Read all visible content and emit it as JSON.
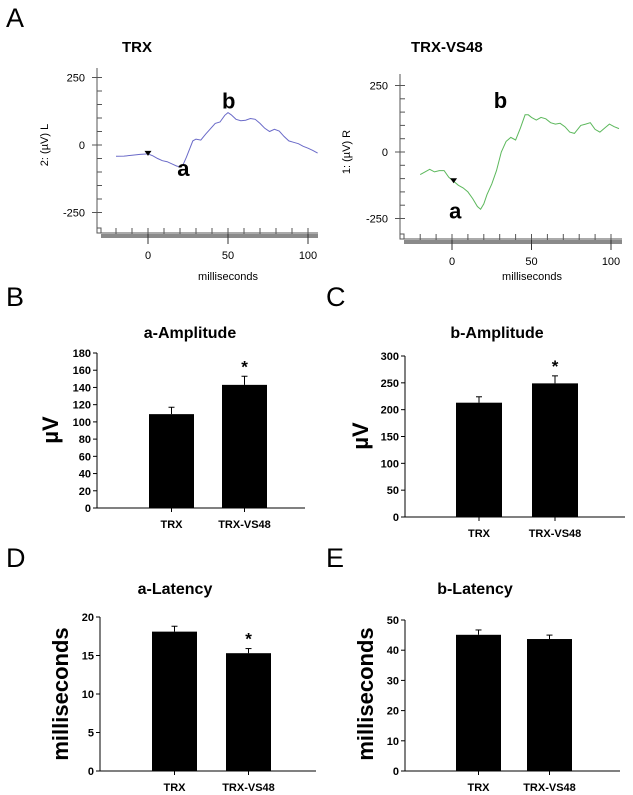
{
  "chart_data": [
    {
      "id": "A-left",
      "panel": "A",
      "type": "line",
      "title": "TRX",
      "xlabel": "milliseconds",
      "ylabel": "2:  (µV)  L",
      "xlim": [
        -30,
        105
      ],
      "ylim": [
        -300,
        280
      ],
      "xticks": [
        0,
        50,
        100
      ],
      "yticks": [
        250,
        0,
        -250
      ],
      "minor_y_step": 50,
      "minor_x_step": 10,
      "line_color": "#6a6ac8",
      "marker_x": 0,
      "annotations": [
        {
          "text": "b",
          "x": 50,
          "y": 165
        },
        {
          "text": "a",
          "x": 22,
          "y": -85
        }
      ],
      "series": [
        {
          "name": "TRX",
          "x": [
            -20,
            -15,
            -10,
            -5,
            0,
            3,
            6,
            9,
            12,
            15,
            18,
            20,
            22,
            24,
            26,
            28,
            30,
            33,
            36,
            39,
            42,
            45,
            48,
            50,
            52,
            55,
            58,
            61,
            64,
            67,
            70,
            73,
            76,
            79,
            82,
            85,
            88,
            91,
            94,
            97,
            100,
            103,
            106
          ],
          "y": [
            -42,
            -41,
            -38,
            -35,
            -33,
            -40,
            -50,
            -58,
            -62,
            -70,
            -78,
            -80,
            -72,
            -45,
            -15,
            15,
            22,
            18,
            40,
            60,
            80,
            85,
            110,
            120,
            112,
            95,
            90,
            92,
            98,
            95,
            80,
            62,
            50,
            58,
            52,
            32,
            15,
            10,
            5,
            -5,
            -12,
            -20,
            -30
          ]
        }
      ]
    },
    {
      "id": "A-right",
      "panel": "A",
      "type": "line",
      "title": "TRX-VS48",
      "xlabel": "milliseconds",
      "ylabel": "1:  (µV)  R",
      "xlim": [
        -30,
        105
      ],
      "ylim": [
        -300,
        280
      ],
      "xticks": [
        0,
        50,
        100
      ],
      "yticks": [
        250,
        0,
        -250
      ],
      "minor_y_step": 50,
      "minor_x_step": 10,
      "line_color": "#5cb85c",
      "marker_x": 1,
      "annotations": [
        {
          "text": "b",
          "x": 30,
          "y": 195
        },
        {
          "text": "a",
          "x": 2,
          "y": -220
        }
      ],
      "series": [
        {
          "name": "TRX-VS48",
          "x": [
            -20,
            -17,
            -14,
            -11,
            -8,
            -5,
            -2,
            1,
            4,
            7,
            10,
            13,
            16,
            18,
            20,
            22,
            25,
            28,
            31,
            34,
            37,
            40,
            43,
            46,
            48,
            50,
            53,
            56,
            59,
            62,
            65,
            68,
            71,
            74,
            77,
            79,
            81,
            84,
            87,
            90,
            93,
            96,
            99,
            102,
            105
          ],
          "y": [
            -85,
            -75,
            -65,
            -75,
            -70,
            -70,
            -95,
            -110,
            -125,
            -135,
            -150,
            -175,
            -205,
            -215,
            -195,
            -160,
            -120,
            -70,
            0,
            40,
            55,
            45,
            90,
            140,
            140,
            130,
            120,
            130,
            125,
            110,
            105,
            108,
            95,
            75,
            70,
            85,
            100,
            105,
            110,
            85,
            75,
            90,
            105,
            95,
            88
          ]
        }
      ]
    },
    {
      "id": "B",
      "panel": "B",
      "type": "bar",
      "title": "a-Amplitude",
      "xlabel": "",
      "ylabel": "µV",
      "categories": [
        "TRX",
        "TRX-VS48"
      ],
      "values": [
        109,
        143
      ],
      "errors": [
        8,
        10
      ],
      "significance": [
        "",
        "*"
      ],
      "ylim": [
        0,
        180
      ],
      "yticks": [
        0,
        20,
        40,
        60,
        80,
        100,
        120,
        140,
        160,
        180
      ],
      "bar_color": "#000000"
    },
    {
      "id": "C",
      "panel": "C",
      "type": "bar",
      "title": "b-Amplitude",
      "xlabel": "",
      "ylabel": "µV",
      "categories": [
        "TRX",
        "TRX-VS48"
      ],
      "values": [
        213,
        249
      ],
      "errors": [
        11,
        14
      ],
      "significance": [
        "",
        "*"
      ],
      "ylim": [
        0,
        300
      ],
      "yticks": [
        0,
        50,
        100,
        150,
        200,
        250,
        300
      ],
      "bar_color": "#000000"
    },
    {
      "id": "D",
      "panel": "D",
      "type": "bar",
      "title": "a-Latency",
      "xlabel": "",
      "ylabel": "milliseconds",
      "categories": [
        "TRX",
        "TRX-VS48"
      ],
      "values": [
        18.1,
        15.3
      ],
      "errors": [
        0.7,
        0.6
      ],
      "significance": [
        "",
        "*"
      ],
      "ylim": [
        0,
        20
      ],
      "yticks": [
        0,
        5,
        10,
        15,
        20
      ],
      "bar_color": "#000000"
    },
    {
      "id": "E",
      "panel": "E",
      "type": "bar",
      "title": "b-Latency",
      "xlabel": "",
      "ylabel": "milliseconds",
      "categories": [
        "TRX",
        "TRX-VS48"
      ],
      "values": [
        45.1,
        43.7
      ],
      "errors": [
        1.6,
        1.3
      ],
      "significance": [
        "",
        ""
      ],
      "ylim": [
        0,
        50
      ],
      "yticks": [
        0,
        10,
        20,
        30,
        40,
        50
      ],
      "bar_color": "#000000"
    }
  ],
  "panel_letters": {
    "A": "A",
    "B": "B",
    "C": "C",
    "D": "D",
    "E": "E"
  }
}
